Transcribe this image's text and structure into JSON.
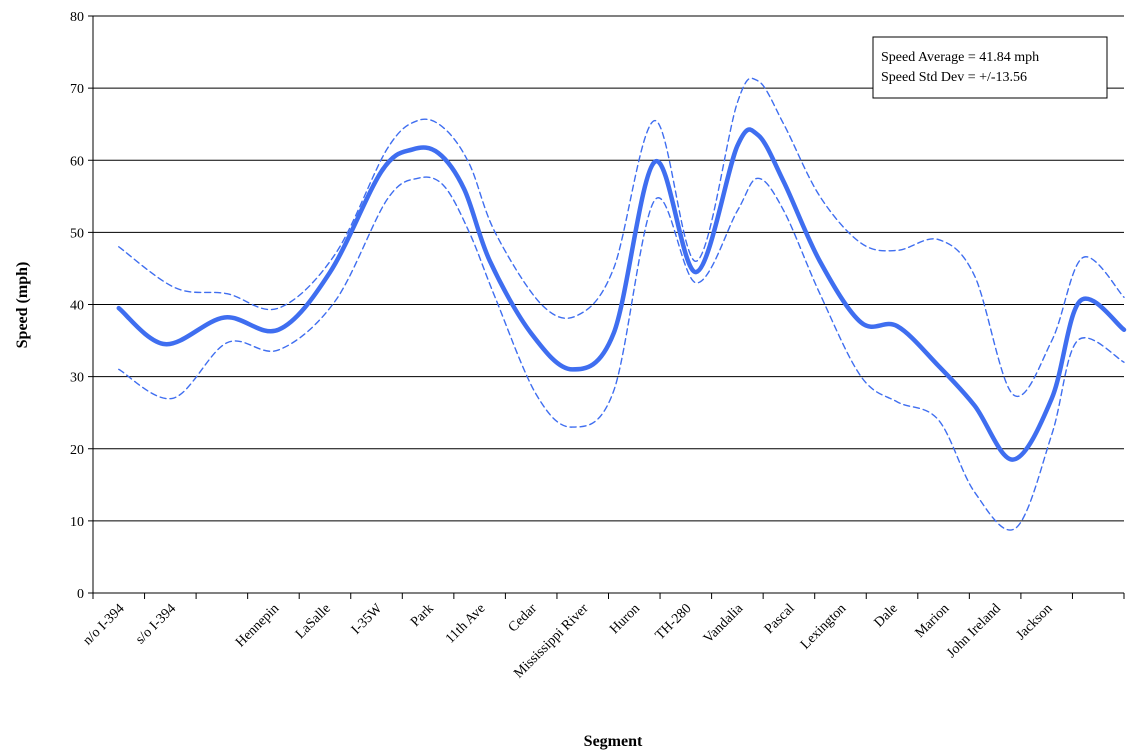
{
  "chart_data": {
    "type": "line",
    "xlabel": "Segment",
    "ylabel": "Speed (mph)",
    "ylim": [
      0,
      80
    ],
    "yticks": [
      0,
      10,
      20,
      30,
      40,
      50,
      60,
      70,
      80
    ],
    "grid": "horizontal",
    "category_slots": 20,
    "category_labels": [
      {
        "slot": 0,
        "label": "n/o I-394"
      },
      {
        "slot": 1,
        "label": "s/o I-394"
      },
      {
        "slot": 3,
        "label": "Hennepin"
      },
      {
        "slot": 4,
        "label": "LaSalle"
      },
      {
        "slot": 5,
        "label": "I-35W"
      },
      {
        "slot": 6,
        "label": "Park"
      },
      {
        "slot": 7,
        "label": "11th Ave"
      },
      {
        "slot": 8,
        "label": "Cedar"
      },
      {
        "slot": 9,
        "label": "Mississippi River"
      },
      {
        "slot": 10,
        "label": "Huron"
      },
      {
        "slot": 11,
        "label": "TH-280"
      },
      {
        "slot": 12,
        "label": "Vandalia"
      },
      {
        "slot": 13,
        "label": "Pascal"
      },
      {
        "slot": 14,
        "label": "Lexington"
      },
      {
        "slot": 15,
        "label": "Dale"
      },
      {
        "slot": 16,
        "label": "Marion"
      },
      {
        "slot": 17,
        "label": "John Ireland"
      },
      {
        "slot": 18,
        "label": "Jackson"
      }
    ],
    "series": [
      {
        "style": "solid",
        "color": "#3f6ef0",
        "x": [
          0,
          0.9,
          2.05,
          3.1,
          4.1,
          5.1,
          5.7,
          6.2,
          6.7,
          7.2,
          8.0,
          8.8,
          9.6,
          10.4,
          11.2,
          12.0,
          12.4,
          12.9,
          13.6,
          14.4,
          15.1,
          15.9,
          16.6,
          17.35,
          18.1,
          18.65,
          19.5
        ],
        "y": [
          39.5,
          34.5,
          38.2,
          36.5,
          44.5,
          58.5,
          61.5,
          61.0,
          56.0,
          46.0,
          36.0,
          31.0,
          36.0,
          59.8,
          44.5,
          62.0,
          63.5,
          57.0,
          46.0,
          37.5,
          37.0,
          31.5,
          26.0,
          18.5,
          27.0,
          40.5,
          36.5
        ]
      },
      {
        "style": "dashed",
        "color": "#3f6ef0",
        "x": [
          0,
          1.1,
          2.1,
          3.1,
          4.2,
          5.2,
          5.8,
          6.3,
          6.8,
          7.3,
          8.2,
          8.9,
          9.6,
          10.4,
          11.2,
          12.0,
          12.4,
          12.9,
          13.6,
          14.4,
          15.1,
          15.9,
          16.6,
          17.35,
          18.1,
          18.7,
          19.5
        ],
        "y": [
          48.0,
          42.3,
          41.5,
          39.5,
          47.0,
          61.5,
          65.5,
          64.5,
          59.5,
          50.0,
          40.0,
          38.5,
          45.0,
          65.5,
          46.0,
          68.0,
          71.0,
          65.0,
          55.0,
          48.5,
          47.5,
          49.0,
          44.0,
          27.5,
          35.0,
          46.5,
          41.0
        ]
      },
      {
        "style": "dashed",
        "color": "#3f6ef0",
        "x": [
          0,
          1.05,
          2.1,
          3.1,
          4.2,
          5.2,
          5.8,
          6.3,
          6.8,
          7.3,
          8.1,
          8.8,
          9.6,
          10.4,
          11.2,
          12.0,
          12.4,
          12.9,
          13.6,
          14.4,
          15.1,
          15.9,
          16.6,
          17.4,
          18.1,
          18.6,
          19.5
        ],
        "y": [
          31.0,
          27.0,
          34.7,
          33.7,
          40.5,
          54.5,
          57.5,
          56.5,
          50.0,
          41.0,
          27.5,
          23.0,
          28.0,
          54.5,
          43.0,
          53.0,
          57.5,
          53.0,
          41.5,
          30.0,
          26.5,
          24.0,
          14.0,
          9.0,
          22.0,
          35.0,
          32.0
        ]
      }
    ],
    "annotation": {
      "lines": [
        "Speed Average = 41.84 mph",
        "Speed Std Dev = +/-13.56"
      ],
      "placement": "top-right"
    }
  }
}
